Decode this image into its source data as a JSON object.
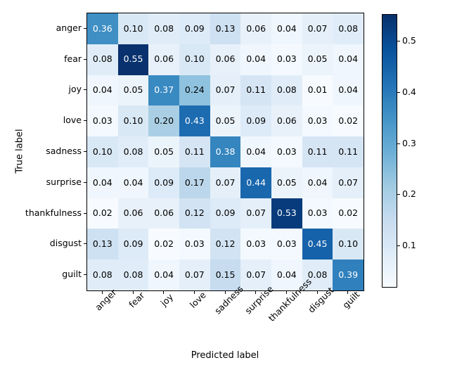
{
  "chart_data": {
    "type": "heatmap",
    "title": "",
    "xlabel": "Predicted label",
    "ylabel": "True label",
    "categories": [
      "anger",
      "fear",
      "joy",
      "love",
      "sadness",
      "surprise",
      "thankfulness",
      "disgust",
      "guilt"
    ],
    "matrix": [
      [
        0.36,
        0.1,
        0.08,
        0.09,
        0.13,
        0.06,
        0.04,
        0.07,
        0.08
      ],
      [
        0.08,
        0.55,
        0.06,
        0.1,
        0.06,
        0.04,
        0.03,
        0.05,
        0.04
      ],
      [
        0.04,
        0.05,
        0.37,
        0.24,
        0.07,
        0.11,
        0.08,
        0.01,
        0.04
      ],
      [
        0.03,
        0.1,
        0.2,
        0.43,
        0.05,
        0.09,
        0.06,
        0.03,
        0.02
      ],
      [
        0.1,
        0.08,
        0.05,
        0.11,
        0.38,
        0.04,
        0.03,
        0.11,
        0.11
      ],
      [
        0.04,
        0.04,
        0.09,
        0.17,
        0.07,
        0.44,
        0.05,
        0.04,
        0.07
      ],
      [
        0.02,
        0.06,
        0.06,
        0.12,
        0.09,
        0.07,
        0.53,
        0.03,
        0.02
      ],
      [
        0.13,
        0.09,
        0.02,
        0.03,
        0.12,
        0.03,
        0.03,
        0.45,
        0.1
      ],
      [
        0.08,
        0.08,
        0.04,
        0.07,
        0.15,
        0.07,
        0.04,
        0.08,
        0.39
      ]
    ],
    "colormap": "Blues",
    "colorbar_ticks": [
      0.1,
      0.2,
      0.3,
      0.4,
      0.5
    ],
    "legend_position": "right-colorbar",
    "grid": false,
    "scale": {
      "vmin": 0.02,
      "vmax": 0.553
    }
  },
  "colors": {
    "cell_text_dark": "#000000",
    "cell_text_light": "#ffffff",
    "axis": "#000000",
    "background": "#ffffff"
  }
}
